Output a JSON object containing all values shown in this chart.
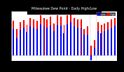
{
  "title": "Milwaukee Dew Point - Daily High/Low",
  "background_color": "#000000",
  "plot_bg": "#ffffff",
  "legend_high_label": "High",
  "legend_low_label": "Low",
  "high_color": "#ff0000",
  "low_color": "#0000ff",
  "bar_width": 0.4,
  "ylim": [
    -10,
    80
  ],
  "ytick_values": [
    0,
    20,
    40,
    60,
    80
  ],
  "ytick_labels": [
    "0",
    "20",
    "40",
    "60",
    "80"
  ],
  "num_days": 31,
  "high_values": [
    62,
    48,
    60,
    64,
    55,
    68,
    65,
    62,
    72,
    68,
    65,
    70,
    58,
    72,
    70,
    55,
    72,
    75,
    68,
    65,
    65,
    48,
    52,
    18,
    28,
    60,
    55,
    58,
    60,
    65,
    68
  ],
  "low_values": [
    48,
    32,
    46,
    50,
    42,
    52,
    50,
    48,
    56,
    52,
    50,
    54,
    44,
    55,
    54,
    40,
    56,
    60,
    52,
    50,
    50,
    38,
    38,
    -8,
    14,
    44,
    40,
    44,
    46,
    50,
    54
  ],
  "vline_positions": [
    22.5,
    24.5
  ],
  "vline_color": "#888888",
  "title_fontsize": 3.5,
  "tick_fontsize": 2.2,
  "legend_fontsize": 2.5
}
